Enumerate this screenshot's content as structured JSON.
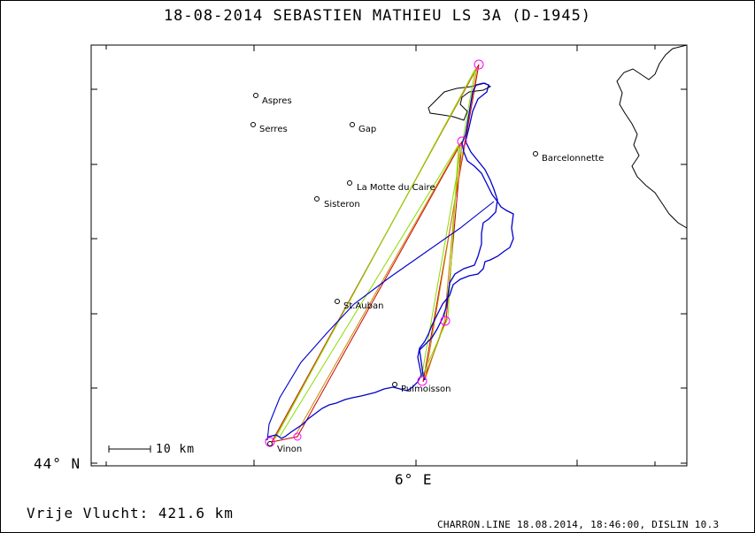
{
  "title": "18-08-2014   SEBASTIEN MATHIEU   LS 3A (D-1945)",
  "axes": {
    "lat_label": "44° N",
    "lon_label": "6° E"
  },
  "scale_bar": {
    "label": "10 km"
  },
  "distance_text": "Vrije Vlucht:  421.6 km",
  "footer": "CHARRON.LINE 18.08.2014, 18:46:00, DISLIN 10.3",
  "towns": [
    {
      "name": "Aspres"
    },
    {
      "name": "Serres"
    },
    {
      "name": "Gap"
    },
    {
      "name": "Barcelonnette"
    },
    {
      "name": "La Motte du Caire"
    },
    {
      "name": "Sisteron"
    },
    {
      "name": "St.Auban"
    },
    {
      "name": "Puimoisson"
    },
    {
      "name": "Vinon"
    }
  ],
  "colors": {
    "track": "#0000cc",
    "task_red": "#cc0000",
    "task_orange": "#cc8800",
    "task_green": "#88dd00",
    "turnpoint": "#ff00ff",
    "coast": "#000000"
  }
}
